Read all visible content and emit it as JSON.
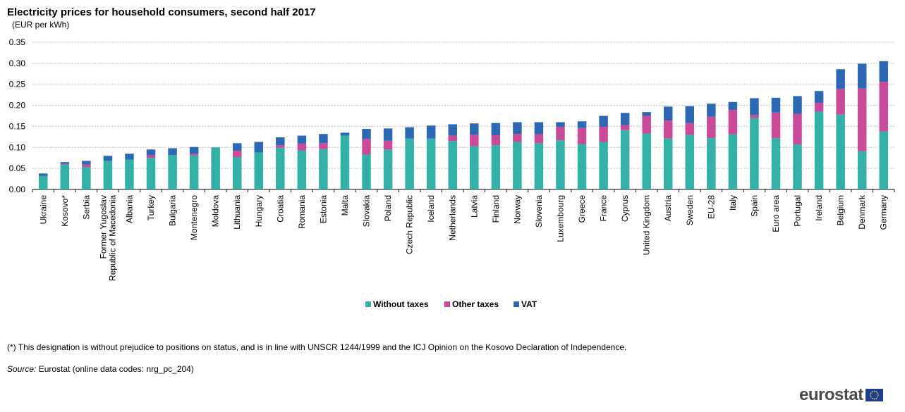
{
  "chart_data": {
    "type": "bar",
    "stacked": true,
    "title": "Electricity  prices for household consumers, second half 2017",
    "subtitle": "(EUR per kWh)",
    "ylim": [
      0,
      0.35
    ],
    "yticks": [
      "0.00",
      "0.05",
      "0.10",
      "0.15",
      "0.20",
      "0.25",
      "0.30",
      "0.35"
    ],
    "grid": true,
    "legend_position": "bottom-center",
    "categories": [
      "Ukraine",
      "Kosovo*",
      "Serbia",
      "Former Yugoslav Republic of Macedonia",
      "Albania",
      "Turkey",
      "Bulgaria",
      "Montenegro",
      "Moldova",
      "Lithuania",
      "Hungary",
      "Croatia",
      "Romania",
      "Estonia",
      "Malta",
      "Slovakia",
      "Poland",
      "Czech Republic",
      "Iceland",
      "Netherlands",
      "Latvia",
      "Finland",
      "Norway",
      "Slovenia",
      "Luxembourg",
      "Greece",
      "France",
      "Cyprus",
      "United Kingdom",
      "Austria",
      "Sweden",
      "EU-28",
      "Italy",
      "Spain",
      "Euro area",
      "Portugal",
      "Ireland",
      "Belgium",
      "Denmark",
      "Germany"
    ],
    "category_lines": {
      "Former Yugoslav Republic of Macedonia": [
        "Former Yugoslav",
        "Republic of Macedonia"
      ]
    },
    "series": [
      {
        "name": "Without taxes",
        "color": "#33b0a8",
        "values": [
          0.032,
          0.059,
          0.053,
          0.068,
          0.071,
          0.075,
          0.082,
          0.081,
          0.1,
          0.077,
          0.088,
          0.099,
          0.093,
          0.096,
          0.128,
          0.083,
          0.095,
          0.121,
          0.121,
          0.115,
          0.103,
          0.105,
          0.113,
          0.11,
          0.117,
          0.108,
          0.113,
          0.141,
          0.133,
          0.121,
          0.13,
          0.122,
          0.131,
          0.17,
          0.122,
          0.107,
          0.185,
          0.178,
          0.091,
          0.138
        ]
      },
      {
        "name": "Other taxes",
        "color": "#c94a98",
        "values": [
          0.0,
          0.002,
          0.006,
          0.0,
          0.0,
          0.006,
          0.0,
          0.004,
          0.0,
          0.015,
          0.0,
          0.006,
          0.016,
          0.014,
          0.0,
          0.037,
          0.021,
          0.0,
          0.0,
          0.013,
          0.027,
          0.024,
          0.019,
          0.021,
          0.032,
          0.038,
          0.036,
          0.012,
          0.042,
          0.043,
          0.028,
          0.051,
          0.058,
          0.007,
          0.061,
          0.073,
          0.021,
          0.061,
          0.149,
          0.118
        ]
      },
      {
        "name": "VAT",
        "color": "#2c68b4",
        "values": [
          0.006,
          0.004,
          0.009,
          0.012,
          0.014,
          0.014,
          0.016,
          0.016,
          0.0,
          0.018,
          0.025,
          0.019,
          0.019,
          0.022,
          0.007,
          0.024,
          0.029,
          0.027,
          0.031,
          0.027,
          0.027,
          0.029,
          0.028,
          0.029,
          0.011,
          0.016,
          0.026,
          0.029,
          0.009,
          0.033,
          0.04,
          0.031,
          0.019,
          0.04,
          0.035,
          0.042,
          0.028,
          0.047,
          0.059,
          0.049
        ]
      }
    ]
  },
  "footnote": "(*) This designation is without prejudice to positions on status, and is in line with UNSCR 1244/1999 and the ICJ Opinion on the Kosovo Declaration of Independence.",
  "source": {
    "label": "Source:",
    "text": " Eurostat (online data codes: nrg_pc_204)"
  },
  "logo": {
    "text": "eurostat",
    "icon": "eu-flag-icon"
  }
}
